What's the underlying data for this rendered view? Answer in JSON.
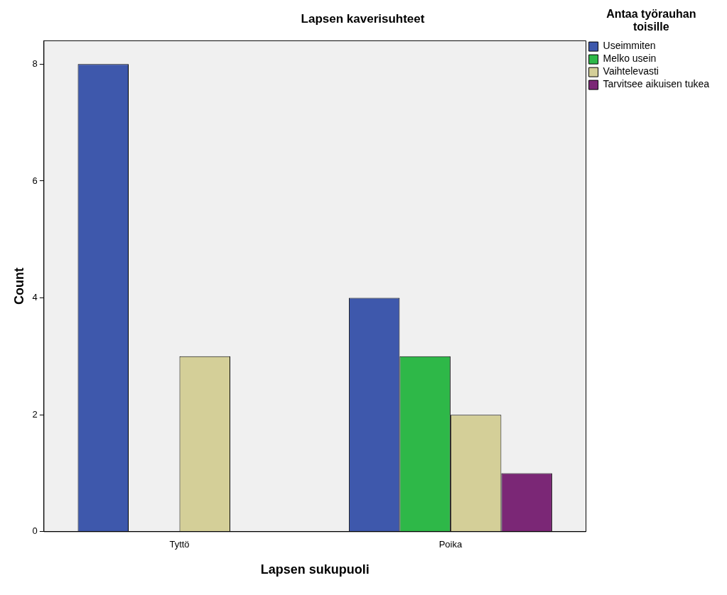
{
  "chart_data": {
    "type": "bar",
    "title": "Lapsen kaverisuhteet",
    "xlabel": "Lapsen sukupuoli",
    "ylabel": "Count",
    "legend_title": "Antaa työrauhan toisille",
    "categories": [
      "Tyttö",
      "Poika"
    ],
    "series": [
      {
        "name": "Useimmiten",
        "color": "#3e58ac",
        "values": [
          8,
          4
        ]
      },
      {
        "name": "Melko usein",
        "color": "#2eb848",
        "values": [
          null,
          3
        ]
      },
      {
        "name": "Vaihtelevasti",
        "color": "#d4cf98",
        "values": [
          3,
          2
        ]
      },
      {
        "name": "Tarvitsee aikuisen tukea",
        "color": "#7b2776",
        "values": [
          null,
          1
        ]
      }
    ],
    "ylim": [
      0,
      8.4
    ],
    "yticks": [
      0,
      2,
      4,
      6,
      8
    ],
    "grid": false,
    "legend": "top right"
  }
}
